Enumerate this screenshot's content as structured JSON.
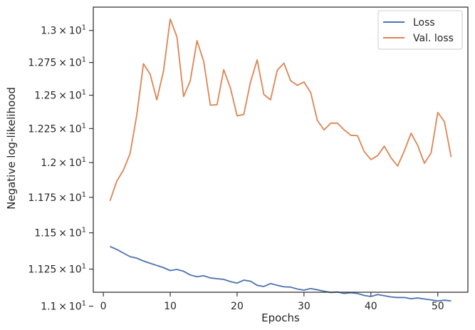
{
  "chart_data": {
    "type": "line",
    "xlabel": "Epochs",
    "ylabel": "Negative log-likelihood",
    "xlim": [
      -1.5,
      54.5
    ],
    "ylim": [
      11.0935,
      13.185
    ],
    "x_scale": "linear",
    "y_scale": "log",
    "x_ticks": [
      {
        "value": 0,
        "label": "0"
      },
      {
        "value": 10,
        "label": "10"
      },
      {
        "value": 20,
        "label": "20"
      },
      {
        "value": 30,
        "label": "30"
      },
      {
        "value": 40,
        "label": "40"
      },
      {
        "value": 50,
        "label": "50"
      }
    ],
    "y_ticks": [
      {
        "value": 11.0,
        "mantissa": "1.1",
        "base": "10",
        "exp": "1"
      },
      {
        "value": 11.25,
        "mantissa": "1.125",
        "base": "10",
        "exp": "1"
      },
      {
        "value": 11.5,
        "mantissa": "1.15",
        "base": "10",
        "exp": "1"
      },
      {
        "value": 11.75,
        "mantissa": "1.175",
        "base": "10",
        "exp": "1"
      },
      {
        "value": 12.0,
        "mantissa": "1.2",
        "base": "10",
        "exp": "1"
      },
      {
        "value": 12.25,
        "mantissa": "1.225",
        "base": "10",
        "exp": "1"
      },
      {
        "value": 12.5,
        "mantissa": "1.25",
        "base": "10",
        "exp": "1"
      },
      {
        "value": 12.75,
        "mantissa": "1.275",
        "base": "10",
        "exp": "1"
      },
      {
        "value": 13.0,
        "mantissa": "1.3",
        "base": "10",
        "exp": "1"
      }
    ],
    "grid": false,
    "legend_position": "top-right",
    "x": [
      1,
      2,
      3,
      4,
      5,
      6,
      7,
      8,
      9,
      10,
      11,
      12,
      13,
      14,
      15,
      16,
      17,
      18,
      19,
      20,
      21,
      22,
      23,
      24,
      25,
      26,
      27,
      28,
      29,
      30,
      31,
      32,
      33,
      34,
      35,
      36,
      37,
      38,
      39,
      40,
      41,
      42,
      43,
      44,
      45,
      46,
      47,
      48,
      49,
      50,
      51,
      52
    ],
    "series": [
      {
        "name": "Loss",
        "color": "#4c72b0",
        "values": [
          11.405,
          11.385,
          11.36,
          11.335,
          11.325,
          11.305,
          11.29,
          11.275,
          11.26,
          11.24,
          11.248,
          11.235,
          11.21,
          11.198,
          11.205,
          11.19,
          11.185,
          11.18,
          11.165,
          11.155,
          11.175,
          11.168,
          11.14,
          11.132,
          11.152,
          11.14,
          11.13,
          11.128,
          11.115,
          11.108,
          11.118,
          11.11,
          11.1,
          11.092,
          11.095,
          11.085,
          11.09,
          11.085,
          11.072,
          11.065,
          11.078,
          11.07,
          11.062,
          11.058,
          11.058,
          11.05,
          11.055,
          11.048,
          11.042,
          11.035,
          11.04,
          11.035
        ]
      },
      {
        "name": "Val. loss",
        "color": "#dd8452",
        "values": [
          11.725,
          11.865,
          11.945,
          12.065,
          12.35,
          12.74,
          12.66,
          12.465,
          12.685,
          13.09,
          12.95,
          12.49,
          12.61,
          12.92,
          12.76,
          12.425,
          12.428,
          12.695,
          12.555,
          12.345,
          12.355,
          12.6,
          12.77,
          12.505,
          12.465,
          12.69,
          12.745,
          12.61,
          12.575,
          12.6,
          12.52,
          12.31,
          12.24,
          12.29,
          12.29,
          12.24,
          12.2,
          12.197,
          12.08,
          12.022,
          12.05,
          12.12,
          12.035,
          11.975,
          12.085,
          12.215,
          12.125,
          11.995,
          12.07,
          12.37,
          12.3,
          12.04
        ]
      }
    ]
  }
}
